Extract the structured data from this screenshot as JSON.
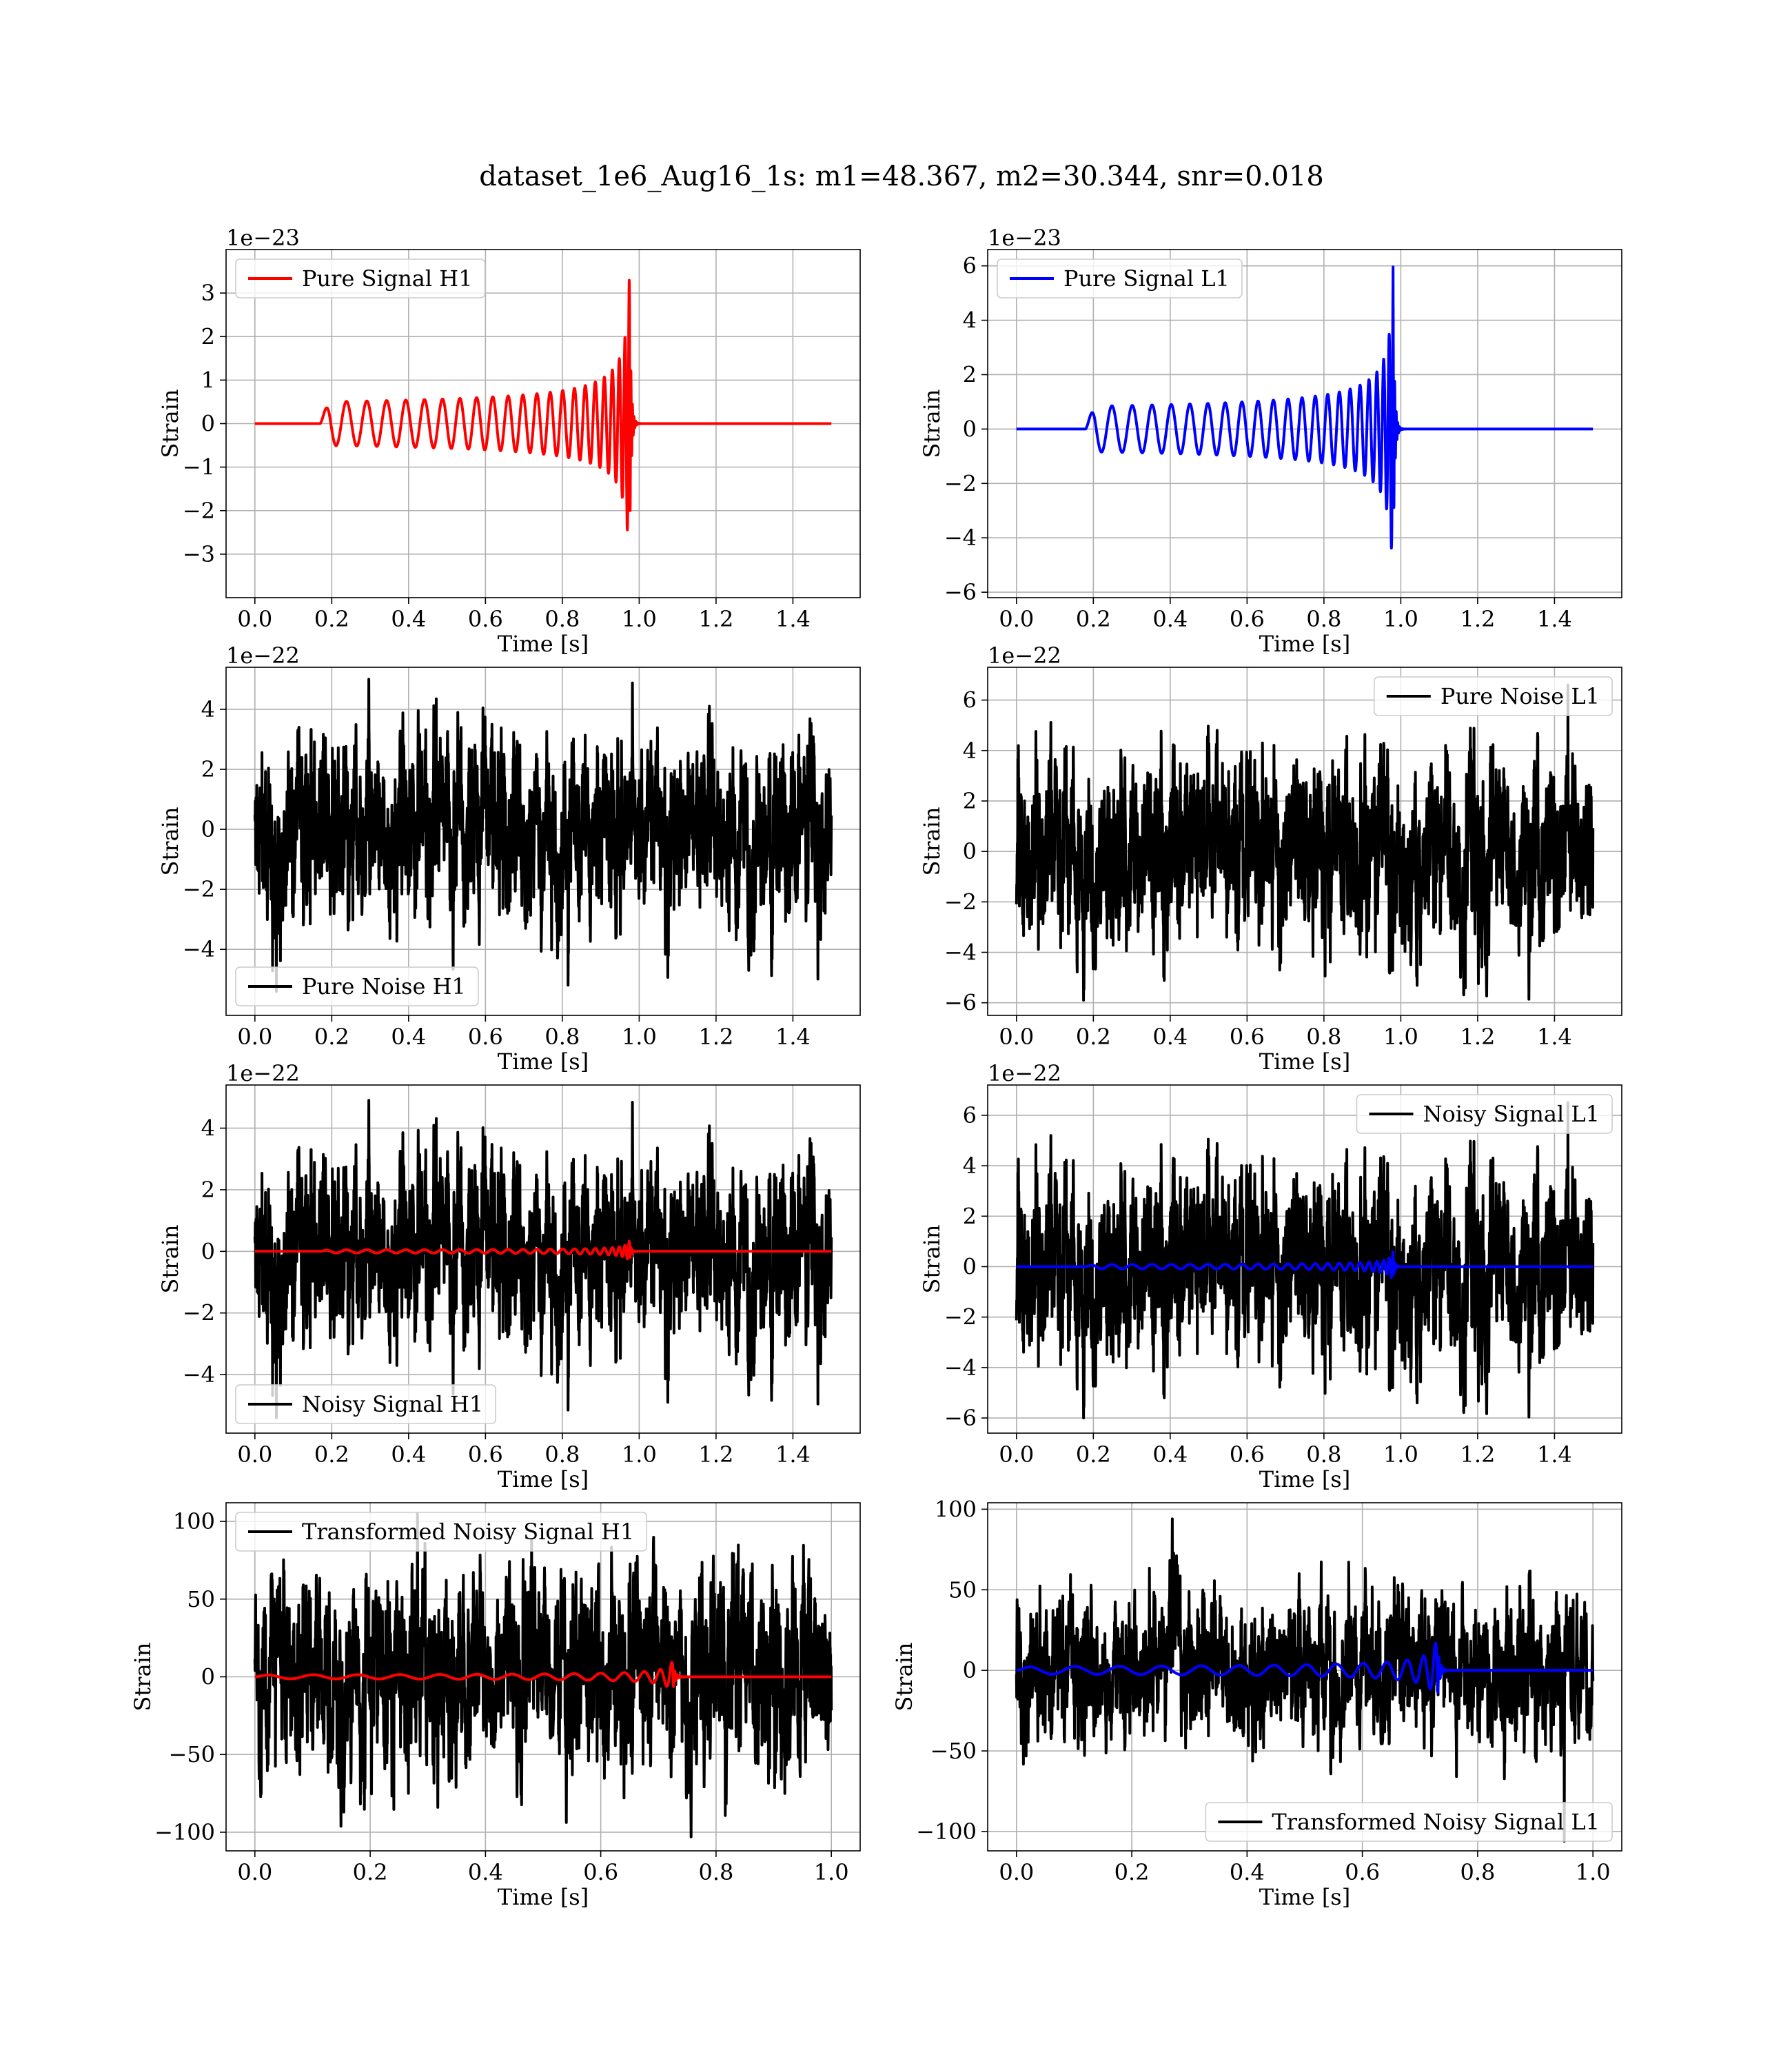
{
  "figure": {
    "title": "dataset_1e6_Aug16_1s: m1=48.367, m2=30.344, snr=0.018"
  },
  "colors": {
    "h1_signal": "#ff0000",
    "l1_signal": "#0000ff",
    "noise": "#000000",
    "grid": "#b0b0b0"
  },
  "chart_data": [
    {
      "id": "pure-signal-h1",
      "type": "line",
      "xlabel": "Time [s]",
      "ylabel": "Strain",
      "offset_text": "1e−23",
      "xlim": [
        -0.075,
        1.575
      ],
      "ylim": [
        -4.0,
        4.0
      ],
      "xticks": [
        0.0,
        0.2,
        0.4,
        0.6,
        0.8,
        1.0,
        1.2,
        1.4
      ],
      "xtick_labels": [
        "0.0",
        "0.2",
        "0.4",
        "0.6",
        "0.8",
        "1.0",
        "1.2",
        "1.4"
      ],
      "yticks": [
        -3,
        -2,
        -1,
        0,
        1,
        2,
        3
      ],
      "ytick_labels": [
        "−3",
        "−2",
        "−1",
        "0",
        "1",
        "2",
        "3"
      ],
      "grid": true,
      "legend": {
        "entries": [
          "Pure Signal H1"
        ],
        "placement": "upper-left"
      },
      "series": [
        {
          "name": "Pure Signal H1",
          "color": "#ff0000",
          "kind": "chirp",
          "t_start": 0.17,
          "t_merge": 0.975,
          "t_end": 1.5,
          "amp_start": 0.3,
          "amp_peak": 3.6,
          "freq_start": 18
        }
      ]
    },
    {
      "id": "pure-signal-l1",
      "type": "line",
      "xlabel": "Time [s]",
      "ylabel": "Strain",
      "offset_text": "1e−23",
      "xlim": [
        -0.075,
        1.575
      ],
      "ylim": [
        -6.2,
        6.6
      ],
      "xticks": [
        0.0,
        0.2,
        0.4,
        0.6,
        0.8,
        1.0,
        1.2,
        1.4
      ],
      "xtick_labels": [
        "0.0",
        "0.2",
        "0.4",
        "0.6",
        "0.8",
        "1.0",
        "1.2",
        "1.4"
      ],
      "yticks": [
        -6,
        -4,
        -2,
        0,
        2,
        4,
        6
      ],
      "ytick_labels": [
        "−6",
        "−4",
        "−2",
        "0",
        "2",
        "4",
        "6"
      ],
      "grid": true,
      "legend": {
        "entries": [
          "Pure Signal L1"
        ],
        "placement": "upper-left"
      },
      "series": [
        {
          "name": "Pure Signal L1",
          "color": "#0000ff",
          "kind": "chirp",
          "t_start": 0.18,
          "t_merge": 0.98,
          "t_end": 1.5,
          "amp_start": 0.5,
          "amp_peak": 6.0,
          "freq_start": 18
        }
      ]
    },
    {
      "id": "pure-noise-h1",
      "type": "line",
      "xlabel": "Time [s]",
      "ylabel": "Strain",
      "offset_text": "1e−22",
      "xlim": [
        -0.075,
        1.575
      ],
      "ylim": [
        -6.2,
        5.4
      ],
      "xticks": [
        0.0,
        0.2,
        0.4,
        0.6,
        0.8,
        1.0,
        1.2,
        1.4
      ],
      "xtick_labels": [
        "0.0",
        "0.2",
        "0.4",
        "0.6",
        "0.8",
        "1.0",
        "1.2",
        "1.4"
      ],
      "yticks": [
        -4,
        -2,
        0,
        2,
        4
      ],
      "ytick_labels": [
        "−4",
        "−2",
        "0",
        "2",
        "4"
      ],
      "grid": true,
      "legend": {
        "entries": [
          "Pure Noise H1"
        ],
        "placement": "lower-left"
      },
      "series": [
        {
          "name": "Pure Noise H1",
          "color": "#000000",
          "kind": "noise",
          "t_start": 0.0,
          "t_end": 1.5,
          "std": 1.5,
          "max": 5.0,
          "min": -5.4,
          "seed": 11
        }
      ]
    },
    {
      "id": "pure-noise-l1",
      "type": "line",
      "xlabel": "Time [s]",
      "ylabel": "Strain",
      "offset_text": "1e−22",
      "xlim": [
        -0.075,
        1.575
      ],
      "ylim": [
        -6.5,
        7.3
      ],
      "xticks": [
        0.0,
        0.2,
        0.4,
        0.6,
        0.8,
        1.0,
        1.2,
        1.4
      ],
      "xtick_labels": [
        "0.0",
        "0.2",
        "0.4",
        "0.6",
        "0.8",
        "1.0",
        "1.2",
        "1.4"
      ],
      "yticks": [
        -6,
        -4,
        -2,
        0,
        2,
        4,
        6
      ],
      "ytick_labels": [
        "−6",
        "−4",
        "−2",
        "0",
        "2",
        "4",
        "6"
      ],
      "grid": true,
      "legend": {
        "entries": [
          "Pure Noise L1"
        ],
        "placement": "upper-right"
      },
      "series": [
        {
          "name": "Pure Noise L1",
          "color": "#000000",
          "kind": "noise",
          "t_start": 0.0,
          "t_end": 1.5,
          "std": 1.7,
          "max": 6.6,
          "min": -5.9,
          "seed": 23
        }
      ]
    },
    {
      "id": "noisy-signal-h1",
      "type": "line",
      "xlabel": "Time [s]",
      "ylabel": "Strain",
      "offset_text": "1e−22",
      "xlim": [
        -0.075,
        1.575
      ],
      "ylim": [
        -5.9,
        5.4
      ],
      "xticks": [
        0.0,
        0.2,
        0.4,
        0.6,
        0.8,
        1.0,
        1.2,
        1.4
      ],
      "xtick_labels": [
        "0.0",
        "0.2",
        "0.4",
        "0.6",
        "0.8",
        "1.0",
        "1.2",
        "1.4"
      ],
      "yticks": [
        -4,
        -2,
        0,
        2,
        4
      ],
      "ytick_labels": [
        "−4",
        "−2",
        "0",
        "2",
        "4"
      ],
      "grid": true,
      "legend": {
        "entries": [
          "Noisy Signal H1"
        ],
        "placement": "lower-left"
      },
      "series": [
        {
          "name": "Noisy Signal H1",
          "color": "#000000",
          "kind": "noise",
          "t_start": 0.0,
          "t_end": 1.5,
          "std": 1.5,
          "max": 4.9,
          "min": -5.4,
          "seed": 11
        },
        {
          "color": "#ff0000",
          "kind": "chirp",
          "t_start": 0.17,
          "t_merge": 0.975,
          "t_end": 1.5,
          "amp_start": 0.03,
          "amp_peak": 0.36,
          "freq_start": 18
        }
      ]
    },
    {
      "id": "noisy-signal-l1",
      "type": "line",
      "xlabel": "Time [s]",
      "ylabel": "Strain",
      "offset_text": "1e−22",
      "xlim": [
        -0.075,
        1.575
      ],
      "ylim": [
        -6.6,
        7.2
      ],
      "xticks": [
        0.0,
        0.2,
        0.4,
        0.6,
        0.8,
        1.0,
        1.2,
        1.4
      ],
      "xtick_labels": [
        "0.0",
        "0.2",
        "0.4",
        "0.6",
        "0.8",
        "1.0",
        "1.2",
        "1.4"
      ],
      "yticks": [
        -6,
        -4,
        -2,
        0,
        2,
        4,
        6
      ],
      "ytick_labels": [
        "−6",
        "−4",
        "−2",
        "0",
        "2",
        "4",
        "6"
      ],
      "grid": true,
      "legend": {
        "entries": [
          "Noisy Signal L1"
        ],
        "placement": "upper-right"
      },
      "series": [
        {
          "name": "Noisy Signal L1",
          "color": "#000000",
          "kind": "noise",
          "t_start": 0.0,
          "t_end": 1.5,
          "std": 1.7,
          "max": 6.5,
          "min": -6.0,
          "seed": 23
        },
        {
          "color": "#0000ff",
          "kind": "chirp",
          "t_start": 0.18,
          "t_merge": 0.98,
          "t_end": 1.5,
          "amp_start": 0.05,
          "amp_peak": 0.6,
          "freq_start": 18
        }
      ]
    },
    {
      "id": "transformed-noisy-signal-h1",
      "type": "line",
      "xlabel": "Time [s]",
      "ylabel": "Strain",
      "offset_text": "",
      "xlim": [
        -0.05,
        1.05
      ],
      "ylim": [
        -112,
        112
      ],
      "xticks": [
        0.0,
        0.2,
        0.4,
        0.6,
        0.8,
        1.0
      ],
      "xtick_labels": [
        "0.0",
        "0.2",
        "0.4",
        "0.6",
        "0.8",
        "1.0"
      ],
      "yticks": [
        -100,
        -50,
        0,
        50,
        100
      ],
      "ytick_labels": [
        "−100",
        "−50",
        "0",
        "50",
        "100"
      ],
      "grid": true,
      "legend": {
        "entries": [
          "Transformed Noisy Signal H1"
        ],
        "placement": "upper-left"
      },
      "series": [
        {
          "name": "Transformed Noisy Signal H1",
          "color": "#000000",
          "kind": "noise",
          "t_start": 0.0,
          "t_end": 1.0,
          "std": 26,
          "max": 105,
          "min": -103,
          "seed": 37
        },
        {
          "color": "#ff0000",
          "kind": "chirp",
          "t_start": 0.0,
          "t_merge": 0.725,
          "t_end": 1.0,
          "amp_start": 0.6,
          "amp_peak": 11,
          "freq_start": 12
        }
      ]
    },
    {
      "id": "transformed-noisy-signal-l1",
      "type": "line",
      "xlabel": "Time [s]",
      "ylabel": "Strain",
      "offset_text": "",
      "xlim": [
        -0.05,
        1.05
      ],
      "ylim": [
        -112,
        104
      ],
      "xticks": [
        0.0,
        0.2,
        0.4,
        0.6,
        0.8,
        1.0
      ],
      "xtick_labels": [
        "0.0",
        "0.2",
        "0.4",
        "0.6",
        "0.8",
        "1.0"
      ],
      "yticks": [
        -100,
        -50,
        0,
        50,
        100
      ],
      "ytick_labels": [
        "−100",
        "−50",
        "0",
        "50",
        "100"
      ],
      "grid": true,
      "legend": {
        "entries": [
          "Transformed Noisy Signal L1"
        ],
        "placement": "lower-right"
      },
      "series": [
        {
          "name": "Transformed Noisy Signal L1",
          "color": "#000000",
          "kind": "noise",
          "t_start": 0.0,
          "t_end": 1.0,
          "std": 28,
          "max": 94,
          "min": -106,
          "seed": 53
        },
        {
          "color": "#0000ff",
          "kind": "chirp",
          "t_start": 0.0,
          "t_merge": 0.73,
          "t_end": 1.0,
          "amp_start": 1.0,
          "amp_peak": 22,
          "freq_start": 12
        }
      ]
    }
  ]
}
